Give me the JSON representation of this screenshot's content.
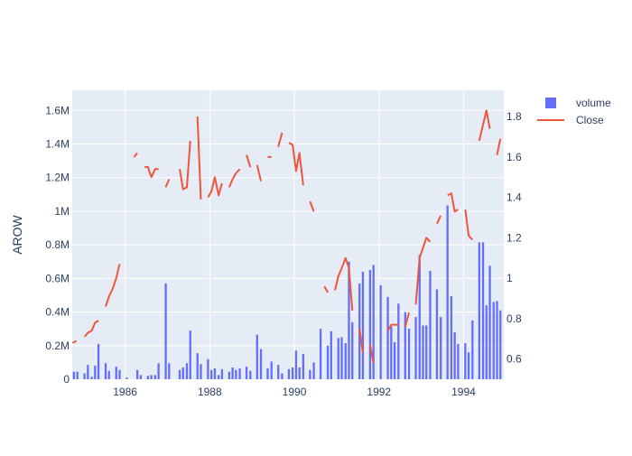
{
  "chart_data": {
    "type": "bar+line",
    "title": "",
    "xlabel": "",
    "ylabel": "AROW",
    "y2label": "",
    "x_range": [
      1984.75,
      1994.95
    ],
    "y_range": [
      0,
      1720000
    ],
    "y2_range": [
      0.5,
      1.93
    ],
    "x_ticks": [
      {
        "value": 1986,
        "label": "1986"
      },
      {
        "value": 1988,
        "label": "1988"
      },
      {
        "value": 1990,
        "label": "1990"
      },
      {
        "value": 1992,
        "label": "1992"
      },
      {
        "value": 1994,
        "label": "1994"
      }
    ],
    "y_ticks": [
      {
        "value": 0,
        "label": "0"
      },
      {
        "value": 200000,
        "label": "0.2M"
      },
      {
        "value": 400000,
        "label": "0.4M"
      },
      {
        "value": 600000,
        "label": "0.6M"
      },
      {
        "value": 800000,
        "label": "0.8M"
      },
      {
        "value": 1000000,
        "label": "1M"
      },
      {
        "value": 1200000,
        "label": "1.2M"
      },
      {
        "value": 1400000,
        "label": "1.4M"
      },
      {
        "value": 1600000,
        "label": "1.6M"
      }
    ],
    "y2_ticks": [
      {
        "value": 0.6,
        "label": "0.6"
      },
      {
        "value": 0.8,
        "label": "0.8"
      },
      {
        "value": 1.0,
        "label": "1"
      },
      {
        "value": 1.2,
        "label": "1.2"
      },
      {
        "value": 1.4,
        "label": "1.4"
      },
      {
        "value": 1.6,
        "label": "1.6"
      },
      {
        "value": 1.8,
        "label": "1.8"
      }
    ],
    "legend": [
      {
        "name": "volume",
        "color": "#636efa",
        "symbol": "square"
      },
      {
        "name": "Close",
        "color": "#ef553b",
        "symbol": "line"
      }
    ],
    "legend_position": "top-right",
    "grid": true,
    "series": [
      {
        "name": "volume",
        "type": "bar",
        "color": "#636efa",
        "points": [
          [
            1984.79,
            45000
          ],
          [
            1984.87,
            45000
          ],
          [
            1985.04,
            35000
          ],
          [
            1985.12,
            85000
          ],
          [
            1985.21,
            15000
          ],
          [
            1985.29,
            80000
          ],
          [
            1985.37,
            210000
          ],
          [
            1985.54,
            95000
          ],
          [
            1985.62,
            50000
          ],
          [
            1985.79,
            75000
          ],
          [
            1985.87,
            55000
          ],
          [
            1986.04,
            10000
          ],
          [
            1986.29,
            55000
          ],
          [
            1986.37,
            25000
          ],
          [
            1986.54,
            20000
          ],
          [
            1986.62,
            25000
          ],
          [
            1986.71,
            25000
          ],
          [
            1986.79,
            95000
          ],
          [
            1986.96,
            570000
          ],
          [
            1987.04,
            95000
          ],
          [
            1987.29,
            55000
          ],
          [
            1987.37,
            70000
          ],
          [
            1987.46,
            95000
          ],
          [
            1987.54,
            290000
          ],
          [
            1987.71,
            155000
          ],
          [
            1987.79,
            90000
          ],
          [
            1987.96,
            120000
          ],
          [
            1988.04,
            55000
          ],
          [
            1988.12,
            65000
          ],
          [
            1988.21,
            25000
          ],
          [
            1988.29,
            60000
          ],
          [
            1988.46,
            45000
          ],
          [
            1988.54,
            70000
          ],
          [
            1988.62,
            55000
          ],
          [
            1988.71,
            65000
          ],
          [
            1988.87,
            75000
          ],
          [
            1988.96,
            50000
          ],
          [
            1989.12,
            265000
          ],
          [
            1989.21,
            180000
          ],
          [
            1989.37,
            65000
          ],
          [
            1989.46,
            105000
          ],
          [
            1989.62,
            85000
          ],
          [
            1989.71,
            35000
          ],
          [
            1989.87,
            60000
          ],
          [
            1989.96,
            70000
          ],
          [
            1990.04,
            170000
          ],
          [
            1990.12,
            70000
          ],
          [
            1990.21,
            150000
          ],
          [
            1990.37,
            55000
          ],
          [
            1990.46,
            100000
          ],
          [
            1990.62,
            300000
          ],
          [
            1990.79,
            200000
          ],
          [
            1990.87,
            285000
          ],
          [
            1991.04,
            245000
          ],
          [
            1991.12,
            250000
          ],
          [
            1991.21,
            215000
          ],
          [
            1991.29,
            700000
          ],
          [
            1991.37,
            340000
          ],
          [
            1991.54,
            570000
          ],
          [
            1991.62,
            640000
          ],
          [
            1991.79,
            650000
          ],
          [
            1991.87,
            680000
          ],
          [
            1992.04,
            560000
          ],
          [
            1992.21,
            490000
          ],
          [
            1992.29,
            315000
          ],
          [
            1992.37,
            220000
          ],
          [
            1992.46,
            450000
          ],
          [
            1992.62,
            400000
          ],
          [
            1992.71,
            300000
          ],
          [
            1992.87,
            370000
          ],
          [
            1992.96,
            740000
          ],
          [
            1993.04,
            320000
          ],
          [
            1993.12,
            320000
          ],
          [
            1993.21,
            645000
          ],
          [
            1993.37,
            535000
          ],
          [
            1993.46,
            370000
          ],
          [
            1993.62,
            1035000
          ],
          [
            1993.71,
            495000
          ],
          [
            1993.79,
            280000
          ],
          [
            1993.87,
            210000
          ],
          [
            1994.04,
            215000
          ],
          [
            1994.12,
            160000
          ],
          [
            1994.21,
            350000
          ],
          [
            1994.37,
            815000
          ],
          [
            1994.46,
            815000
          ],
          [
            1994.54,
            440000
          ],
          [
            1994.62,
            675000
          ],
          [
            1994.71,
            460000
          ],
          [
            1994.79,
            465000
          ],
          [
            1994.87,
            410000
          ]
        ]
      },
      {
        "name": "Close",
        "type": "line",
        "color": "#ef553b",
        "segments": [
          [
            [
              1984.76,
              0.68
            ],
            [
              1984.85,
              0.69
            ]
          ],
          [
            [
              1985.04,
              0.71
            ],
            [
              1985.12,
              0.73
            ],
            [
              1985.21,
              0.74
            ],
            [
              1985.29,
              0.78
            ],
            [
              1985.37,
              0.79
            ]
          ],
          [
            [
              1985.54,
              0.86
            ],
            [
              1985.62,
              0.91
            ],
            [
              1985.71,
              0.95
            ],
            [
              1985.79,
              1.0
            ],
            [
              1985.87,
              1.07
            ]
          ],
          [
            [
              1986.21,
              1.6
            ],
            [
              1986.29,
              1.62
            ]
          ],
          [
            [
              1986.46,
              1.55
            ],
            [
              1986.54,
              1.55
            ],
            [
              1986.62,
              1.5
            ],
            [
              1986.71,
              1.54
            ],
            [
              1986.79,
              1.54
            ]
          ],
          [
            [
              1986.96,
              1.45
            ],
            [
              1987.04,
              1.49
            ]
          ],
          [
            [
              1987.29,
              1.54
            ],
            [
              1987.37,
              1.44
            ],
            [
              1987.46,
              1.45
            ],
            [
              1987.54,
              1.68
            ]
          ],
          [
            [
              1987.71,
              1.8
            ],
            [
              1987.79,
              1.39
            ]
          ],
          [
            [
              1987.96,
              1.4
            ],
            [
              1988.04,
              1.43
            ],
            [
              1988.12,
              1.5
            ],
            [
              1988.21,
              1.41
            ],
            [
              1988.29,
              1.47
            ]
          ],
          [
            [
              1988.46,
              1.45
            ],
            [
              1988.54,
              1.49
            ],
            [
              1988.62,
              1.52
            ],
            [
              1988.71,
              1.54
            ]
          ],
          [
            [
              1988.87,
              1.61
            ],
            [
              1988.96,
              1.55
            ]
          ],
          [
            [
              1989.12,
              1.56
            ],
            [
              1989.21,
              1.48
            ]
          ],
          [
            [
              1989.37,
              1.6
            ],
            [
              1989.46,
              1.6
            ]
          ],
          [
            [
              1989.62,
              1.65
            ],
            [
              1989.71,
              1.72
            ]
          ],
          [
            [
              1989.87,
              1.67
            ],
            [
              1989.96,
              1.66
            ],
            [
              1990.04,
              1.53
            ],
            [
              1990.12,
              1.62
            ],
            [
              1990.21,
              1.46
            ]
          ],
          [
            [
              1990.37,
              1.38
            ],
            [
              1990.46,
              1.33
            ]
          ],
          [
            [
              1990.71,
              0.96
            ],
            [
              1990.79,
              0.93
            ]
          ],
          [
            [
              1990.96,
              0.94
            ],
            [
              1991.04,
              1.01
            ],
            [
              1991.12,
              1.05
            ],
            [
              1991.21,
              1.1
            ],
            [
              1991.29,
              1.05
            ],
            [
              1991.37,
              0.84
            ]
          ],
          [
            [
              1991.54,
              0.75
            ],
            [
              1991.62,
              0.63
            ]
          ],
          [
            [
              1991.79,
              0.67
            ],
            [
              1991.87,
              0.58
            ]
          ],
          [
            [
              1992.21,
              0.74
            ],
            [
              1992.29,
              0.77
            ],
            [
              1992.37,
              0.77
            ],
            [
              1992.46,
              0.77
            ]
          ],
          [
            [
              1992.62,
              0.76
            ],
            [
              1992.71,
              0.83
            ]
          ],
          [
            [
              1992.87,
              0.87
            ],
            [
              1992.96,
              1.1
            ],
            [
              1993.04,
              1.15
            ],
            [
              1993.12,
              1.2
            ],
            [
              1993.21,
              1.18
            ]
          ],
          [
            [
              1993.37,
              1.27
            ],
            [
              1993.46,
              1.31
            ]
          ],
          [
            [
              1993.62,
              1.41
            ],
            [
              1993.71,
              1.42
            ],
            [
              1993.79,
              1.33
            ],
            [
              1993.87,
              1.34
            ]
          ],
          [
            [
              1994.04,
              1.34
            ],
            [
              1994.12,
              1.21
            ],
            [
              1994.21,
              1.19
            ]
          ],
          [
            [
              1994.37,
              1.68
            ],
            [
              1994.46,
              1.76
            ],
            [
              1994.54,
              1.83
            ],
            [
              1994.62,
              1.74
            ]
          ],
          [
            [
              1994.79,
              1.61
            ],
            [
              1994.87,
              1.69
            ]
          ]
        ]
      }
    ]
  }
}
